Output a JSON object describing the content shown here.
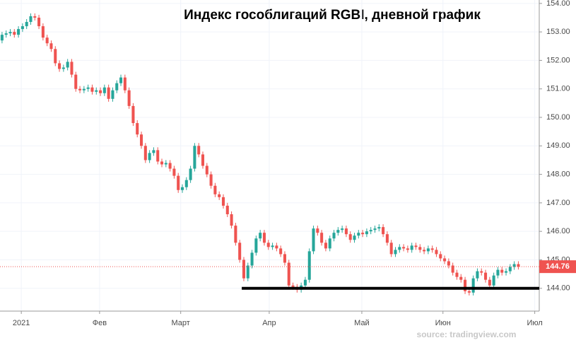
{
  "chart_data": {
    "type": "candlestick",
    "title": "Индекс гособлигаций RGBI, дневной график",
    "source": "source: tradingview.com",
    "up_color": "#26a69a",
    "down_color": "#ef5350",
    "xlim": [
      -0.5,
      131.1
    ],
    "ylim": [
      143.2,
      154.12
    ],
    "xticks": [
      {
        "value": 4.7,
        "label": "2021"
      },
      {
        "value": 23.8,
        "label": "Фев"
      },
      {
        "value": 43.6,
        "label": "Март"
      },
      {
        "value": 65.2,
        "label": "Апр"
      },
      {
        "value": 87.8,
        "label": "Май"
      },
      {
        "value": 107.6,
        "label": "Июн"
      },
      {
        "value": 130,
        "label": "Июл"
      }
    ],
    "yticks": [
      {
        "value": 144,
        "label": "144.00"
      },
      {
        "value": 145,
        "label": "145.00"
      },
      {
        "value": 146,
        "label": "146.00"
      },
      {
        "value": 147,
        "label": "147.00"
      },
      {
        "value": 148,
        "label": "148.00"
      },
      {
        "value": 149,
        "label": "149.00"
      },
      {
        "value": 150,
        "label": "150.00"
      },
      {
        "value": 151,
        "label": "151.00"
      },
      {
        "value": 152,
        "label": "152.00"
      },
      {
        "value": 153,
        "label": "153.00"
      },
      {
        "value": 154,
        "label": "154.00"
      }
    ],
    "grid": true,
    "support_level": 144.0,
    "support_start_x": 58.5,
    "open": [
      152.7,
      152.9,
      152.95,
      153.0,
      152.9,
      153.1,
      153.2,
      153.35,
      153.55,
      153.5,
      153.2,
      152.8,
      152.6,
      152.4,
      151.9,
      151.7,
      151.75,
      151.95,
      151.5,
      151.0,
      150.95,
      151.0,
      151.05,
      150.9,
      150.95,
      150.85,
      151.05,
      150.65,
      150.95,
      151.2,
      151.4,
      150.95,
      150.4,
      149.8,
      149.4,
      149.0,
      148.5,
      148.75,
      148.85,
      148.45,
      148.35,
      148.4,
      148.2,
      147.95,
      147.45,
      147.55,
      147.8,
      148.2,
      149.0,
      148.7,
      148.3,
      148.0,
      147.6,
      147.3,
      147.2,
      146.9,
      146.6,
      146.2,
      145.6,
      145.0,
      144.35,
      144.8,
      145.25,
      145.75,
      145.95,
      145.6,
      145.45,
      145.5,
      145.4,
      145.2,
      144.9,
      144.1,
      144.05,
      143.95,
      144.1,
      144.3,
      145.3,
      146.1,
      145.95,
      145.6,
      145.4,
      145.75,
      145.95,
      146.05,
      146.1,
      145.9,
      145.7,
      145.85,
      145.95,
      145.9,
      146.0,
      146.05,
      146.1,
      146.15,
      145.9,
      145.6,
      145.2,
      145.35,
      145.45,
      145.4,
      145.35,
      145.5,
      145.45,
      145.35,
      145.3,
      145.4,
      145.35,
      145.2,
      145.05,
      144.95,
      144.8,
      144.55,
      144.4,
      144.3,
      143.9,
      143.85,
      144.35,
      144.6,
      144.55,
      144.3,
      144.1,
      144.45,
      144.65,
      144.55,
      144.6,
      144.75,
      144.85
    ],
    "high": [
      153.0,
      153.05,
      153.1,
      153.1,
      153.2,
      153.3,
      153.45,
      153.65,
      153.65,
      153.6,
      153.3,
      152.9,
      152.7,
      152.5,
      152.0,
      151.85,
      152.05,
      152.05,
      151.6,
      151.1,
      151.1,
      151.15,
      151.15,
      151.05,
      151.05,
      151.15,
      151.15,
      151.05,
      151.3,
      151.5,
      151.5,
      151.05,
      150.5,
      149.9,
      149.5,
      149.1,
      148.85,
      148.95,
      148.95,
      148.55,
      148.5,
      148.5,
      148.3,
      148.05,
      147.65,
      147.9,
      148.3,
      149.1,
      149.1,
      148.8,
      148.4,
      148.1,
      147.7,
      147.4,
      147.3,
      147.0,
      146.7,
      146.3,
      145.7,
      145.1,
      144.9,
      145.35,
      145.85,
      146.05,
      146.05,
      145.7,
      145.6,
      145.6,
      145.5,
      145.3,
      145.0,
      144.2,
      144.15,
      144.2,
      144.4,
      145.4,
      146.2,
      146.2,
      146.05,
      145.7,
      145.85,
      146.05,
      146.15,
      146.2,
      146.2,
      146.0,
      145.95,
      146.05,
      146.05,
      146.1,
      146.15,
      146.2,
      146.25,
      146.25,
      146.0,
      145.7,
      145.45,
      145.55,
      145.55,
      145.5,
      145.6,
      145.6,
      145.55,
      145.45,
      145.5,
      145.5,
      145.45,
      145.3,
      145.15,
      145.05,
      144.9,
      144.65,
      144.5,
      144.4,
      144.0,
      144.45,
      144.7,
      144.7,
      144.65,
      144.4,
      144.55,
      144.75,
      144.75,
      144.7,
      144.85,
      144.95,
      144.95
    ],
    "low": [
      152.6,
      152.8,
      152.85,
      152.8,
      152.8,
      153.0,
      153.1,
      153.25,
      153.4,
      153.1,
      152.7,
      152.5,
      152.3,
      151.8,
      151.6,
      151.6,
      151.65,
      151.4,
      150.9,
      150.85,
      150.85,
      150.9,
      150.8,
      150.8,
      150.75,
      150.75,
      150.55,
      150.55,
      150.85,
      151.1,
      150.85,
      150.3,
      149.7,
      149.3,
      148.9,
      148.4,
      148.4,
      148.65,
      148.35,
      148.25,
      148.25,
      148.1,
      147.85,
      147.35,
      147.35,
      147.45,
      147.7,
      148.1,
      148.6,
      148.2,
      147.9,
      147.5,
      147.2,
      147.1,
      146.8,
      146.5,
      146.1,
      145.5,
      144.9,
      144.25,
      144.25,
      144.7,
      145.15,
      145.65,
      145.5,
      145.35,
      145.35,
      145.3,
      145.1,
      144.8,
      144.0,
      143.95,
      143.85,
      143.85,
      144.0,
      144.2,
      145.2,
      145.85,
      145.5,
      145.3,
      145.3,
      145.65,
      145.85,
      145.95,
      145.8,
      145.6,
      145.6,
      145.75,
      145.8,
      145.8,
      145.9,
      145.95,
      146.0,
      145.8,
      145.5,
      145.1,
      145.1,
      145.25,
      145.3,
      145.25,
      145.25,
      145.35,
      145.25,
      145.2,
      145.2,
      145.25,
      145.1,
      144.95,
      144.85,
      144.7,
      144.45,
      144.3,
      144.2,
      143.8,
      143.75,
      143.75,
      144.25,
      144.45,
      144.2,
      144.0,
      144.0,
      144.35,
      144.45,
      144.45,
      144.5,
      144.65,
      144.66
    ],
    "close": [
      152.9,
      152.95,
      153.0,
      152.9,
      153.1,
      153.2,
      153.35,
      153.55,
      153.5,
      153.2,
      152.8,
      152.6,
      152.4,
      151.9,
      151.7,
      151.75,
      151.95,
      151.5,
      151.0,
      150.95,
      151.0,
      151.05,
      150.9,
      150.95,
      150.85,
      151.05,
      150.65,
      150.95,
      151.2,
      151.4,
      150.95,
      150.4,
      149.8,
      149.4,
      149.0,
      148.5,
      148.75,
      148.85,
      148.45,
      148.35,
      148.4,
      148.2,
      147.95,
      147.45,
      147.55,
      147.8,
      148.2,
      149.0,
      148.7,
      148.3,
      148.0,
      147.6,
      147.3,
      147.2,
      146.9,
      146.6,
      146.2,
      145.6,
      145.0,
      144.35,
      144.8,
      145.25,
      145.75,
      145.95,
      145.6,
      145.45,
      145.5,
      145.4,
      145.2,
      144.9,
      144.1,
      144.05,
      143.95,
      144.1,
      144.3,
      145.3,
      146.1,
      145.95,
      145.6,
      145.4,
      145.75,
      145.95,
      146.05,
      146.1,
      145.9,
      145.7,
      145.85,
      145.95,
      145.9,
      146.0,
      146.05,
      146.1,
      146.15,
      145.9,
      145.6,
      145.2,
      145.35,
      145.45,
      145.4,
      145.35,
      145.5,
      145.45,
      145.35,
      145.3,
      145.4,
      145.35,
      145.2,
      145.05,
      144.95,
      144.8,
      144.55,
      144.4,
      144.3,
      143.9,
      143.85,
      144.35,
      144.6,
      144.55,
      144.3,
      144.1,
      144.45,
      144.65,
      144.55,
      144.6,
      144.75,
      144.85,
      144.76
    ]
  }
}
